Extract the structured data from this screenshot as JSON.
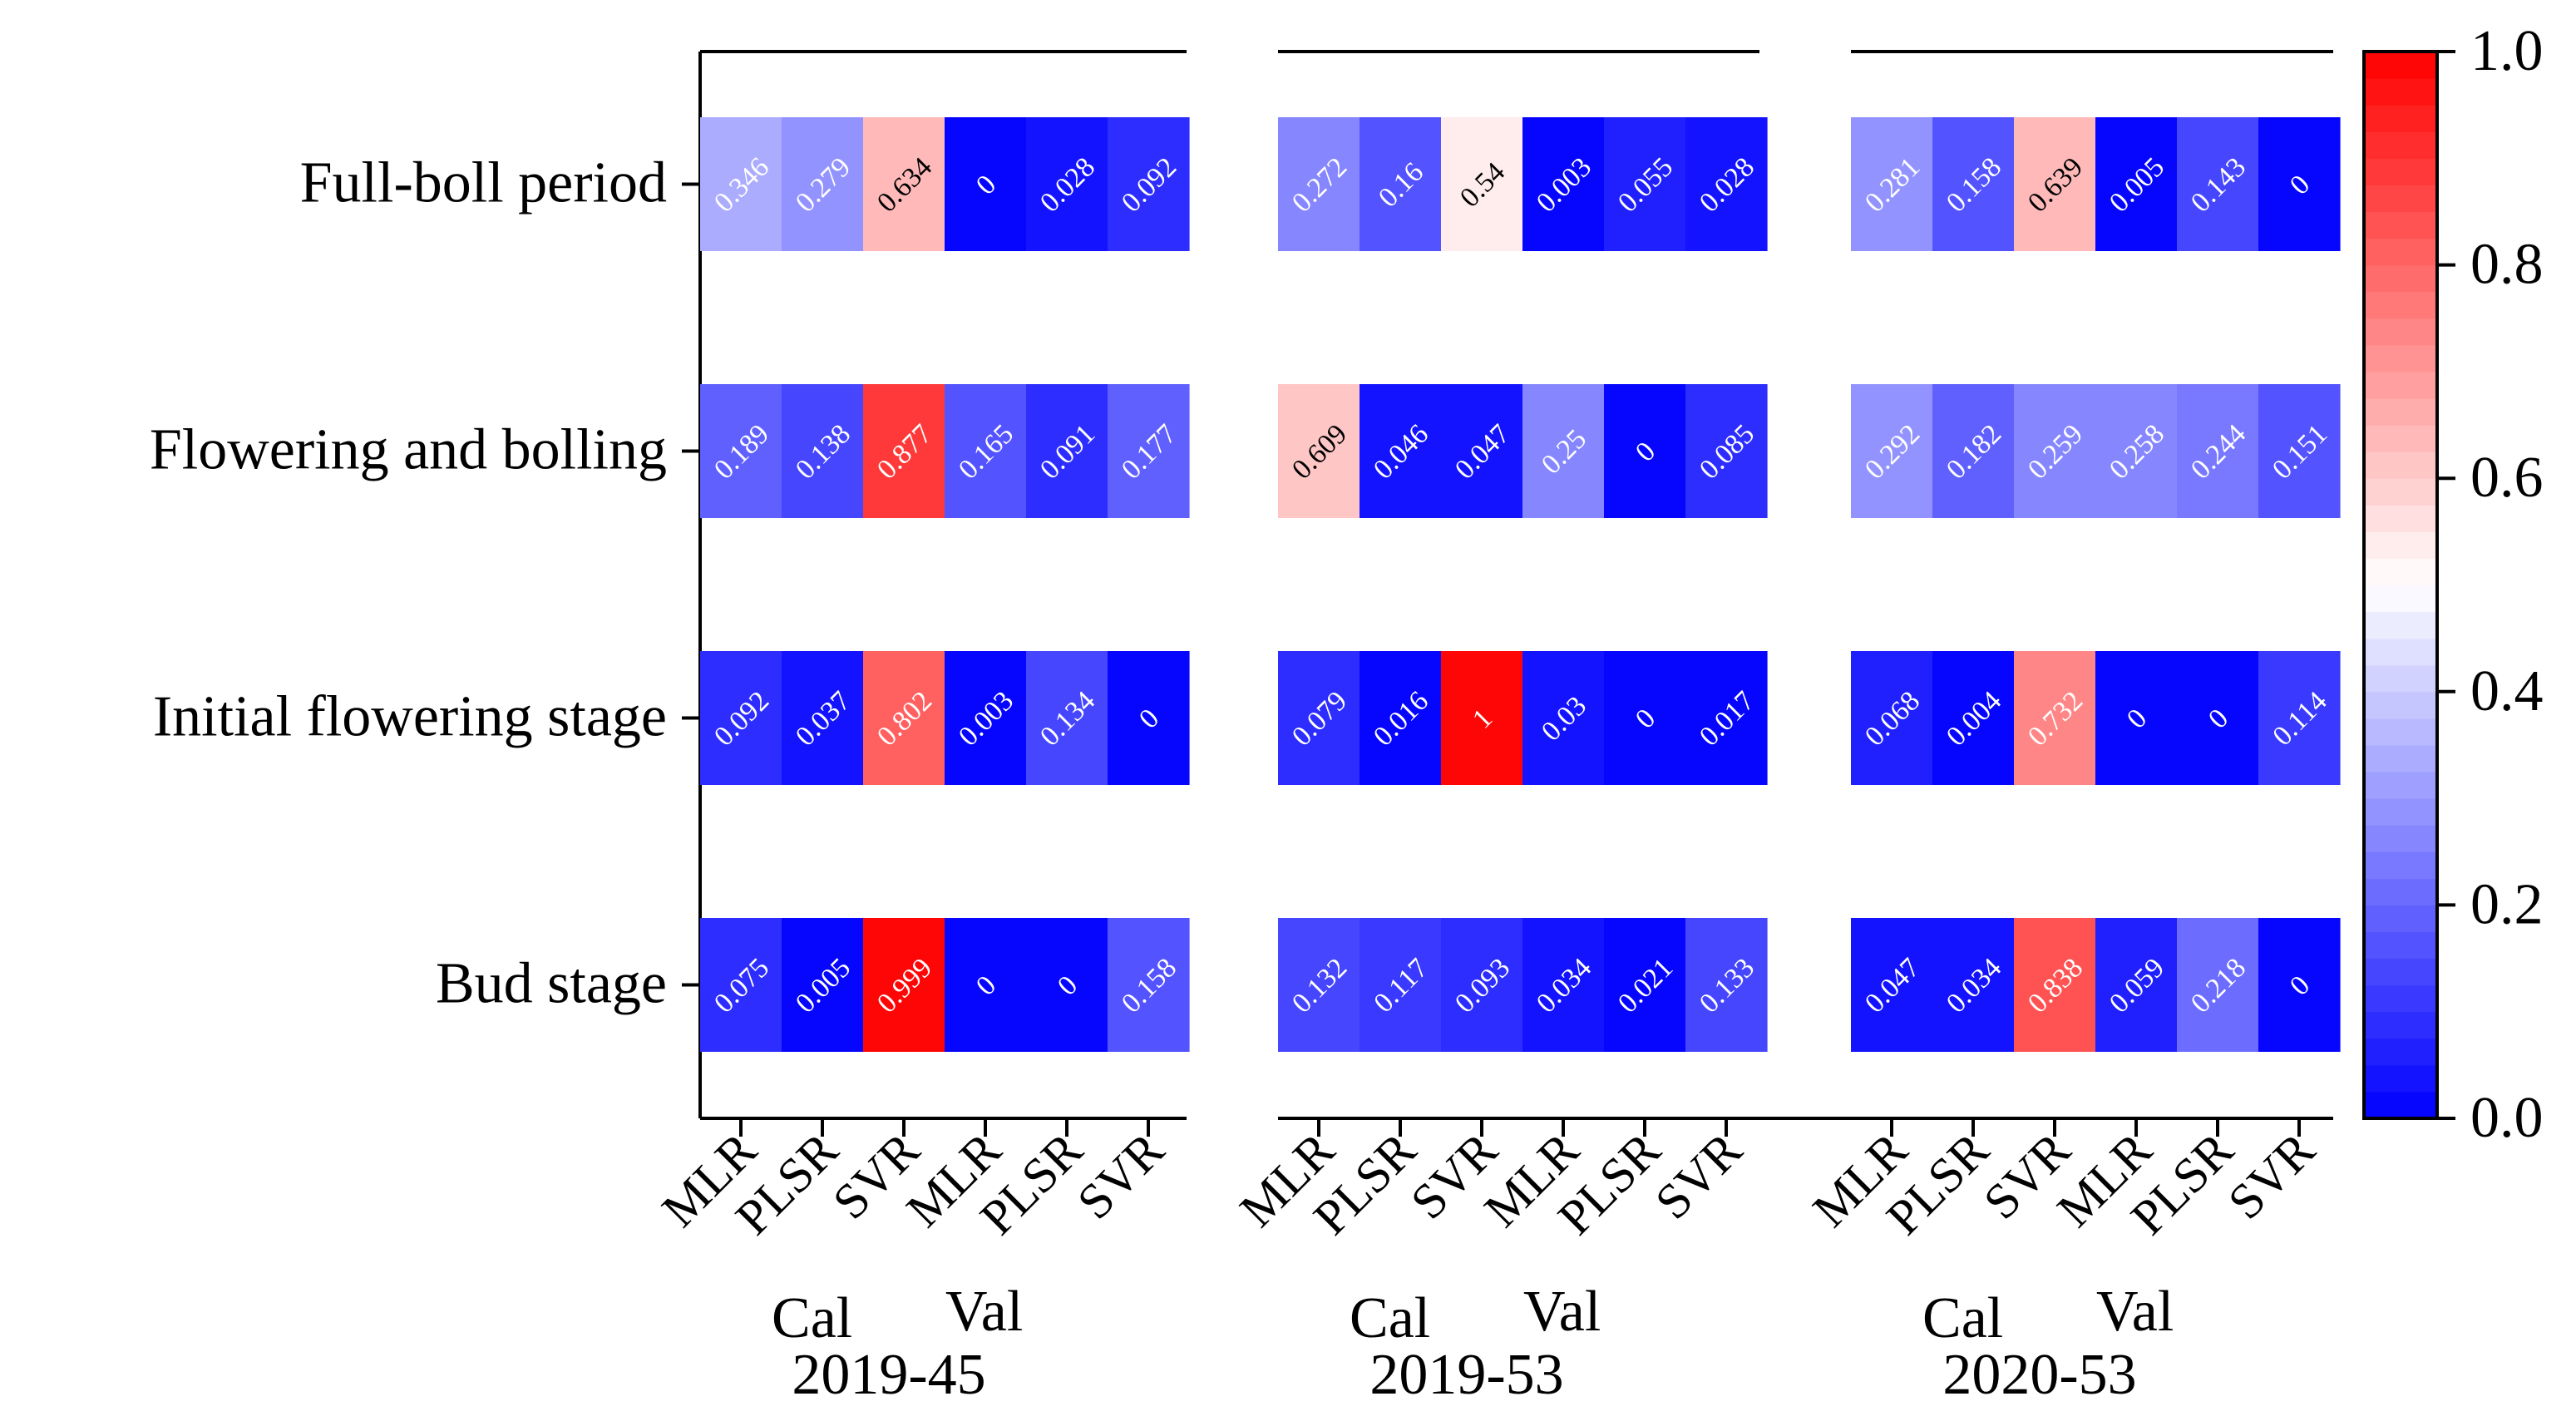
{
  "chart_data": {
    "type": "heatmap",
    "rows": [
      "Full-boll period",
      "Flowering and bolling",
      "Initial flowering stage",
      "Bud stage"
    ],
    "columns": [
      "MLR",
      "PLSR",
      "SVR",
      "MLR",
      "PLSR",
      "SVR"
    ],
    "column_groups": [
      "Cal",
      "Val"
    ],
    "panels": [
      {
        "name": "2019-45",
        "values": [
          [
            "0.346",
            "0.279",
            "0.634",
            "0",
            "0.028",
            "0.092"
          ],
          [
            "0.189",
            "0.138",
            "0.877",
            "0.165",
            "0.091",
            "0.177"
          ],
          [
            "0.092",
            "0.037",
            "0.802",
            "0.003",
            "0.134",
            "0"
          ],
          [
            "0.075",
            "0.005",
            "0.999",
            "0",
            "0",
            "0.158"
          ]
        ]
      },
      {
        "name": "2019-53",
        "values": [
          [
            "0.272",
            "0.16",
            "0.54",
            "0.003",
            "0.055",
            "0.028"
          ],
          [
            "0.609",
            "0.046",
            "0.047",
            "0.25",
            "0",
            "0.085"
          ],
          [
            "0.079",
            "0.016",
            "1",
            "0.03",
            "0",
            "0.017"
          ],
          [
            "0.132",
            "0.117",
            "0.093",
            "0.034",
            "0.021",
            "0.133"
          ]
        ]
      },
      {
        "name": "2020-53",
        "values": [
          [
            "0.281",
            "0.158",
            "0.639",
            "0.005",
            "0.143",
            "0"
          ],
          [
            "0.292",
            "0.182",
            "0.259",
            "0.258",
            "0.244",
            "0.151"
          ],
          [
            "0.068",
            "0.004",
            "0.732",
            "0",
            "0",
            "0.114"
          ],
          [
            "0.047",
            "0.034",
            "0.838",
            "0.059",
            "0.218",
            "0"
          ]
        ]
      }
    ],
    "colorbar": {
      "ticks": [
        "0.0",
        "0.2",
        "0.4",
        "0.6",
        "0.8",
        "1.0"
      ],
      "range": [
        0,
        1
      ],
      "colormap": "bwr",
      "levels": 40
    },
    "colors": {
      "low": "#0000ff",
      "mid": "#ffffff",
      "high": "#ff0000"
    }
  }
}
